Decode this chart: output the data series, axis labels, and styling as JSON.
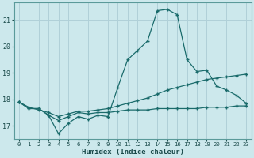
{
  "xlabel": "Humidex (Indice chaleur)",
  "background_color": "#cce8ec",
  "grid_color": "#b0d0d8",
  "line_color": "#1a6b6b",
  "x_values": [
    0,
    1,
    2,
    3,
    4,
    5,
    6,
    7,
    8,
    9,
    10,
    11,
    12,
    13,
    14,
    15,
    16,
    17,
    18,
    19,
    20,
    21,
    22,
    23
  ],
  "y_line1": [
    17.9,
    17.65,
    17.65,
    17.4,
    16.7,
    17.1,
    17.35,
    17.25,
    17.4,
    17.35,
    18.45,
    19.5,
    19.85,
    20.2,
    21.35,
    21.4,
    21.2,
    19.5,
    19.05,
    19.1,
    18.5,
    18.35,
    18.15,
    17.85
  ],
  "y_line2": [
    17.9,
    17.7,
    17.6,
    17.5,
    17.35,
    17.45,
    17.55,
    17.55,
    17.6,
    17.65,
    17.75,
    17.85,
    17.95,
    18.05,
    18.2,
    18.35,
    18.45,
    18.55,
    18.65,
    18.75,
    18.8,
    18.85,
    18.9,
    18.95
  ],
  "y_line3": [
    17.9,
    17.65,
    17.65,
    17.4,
    17.2,
    17.35,
    17.5,
    17.45,
    17.5,
    17.5,
    17.55,
    17.6,
    17.6,
    17.6,
    17.65,
    17.65,
    17.65,
    17.65,
    17.65,
    17.7,
    17.7,
    17.7,
    17.75,
    17.75
  ],
  "ylim": [
    16.5,
    21.65
  ],
  "yticks": [
    17,
    18,
    19,
    20,
    21
  ],
  "xlim": [
    -0.5,
    23.5
  ]
}
